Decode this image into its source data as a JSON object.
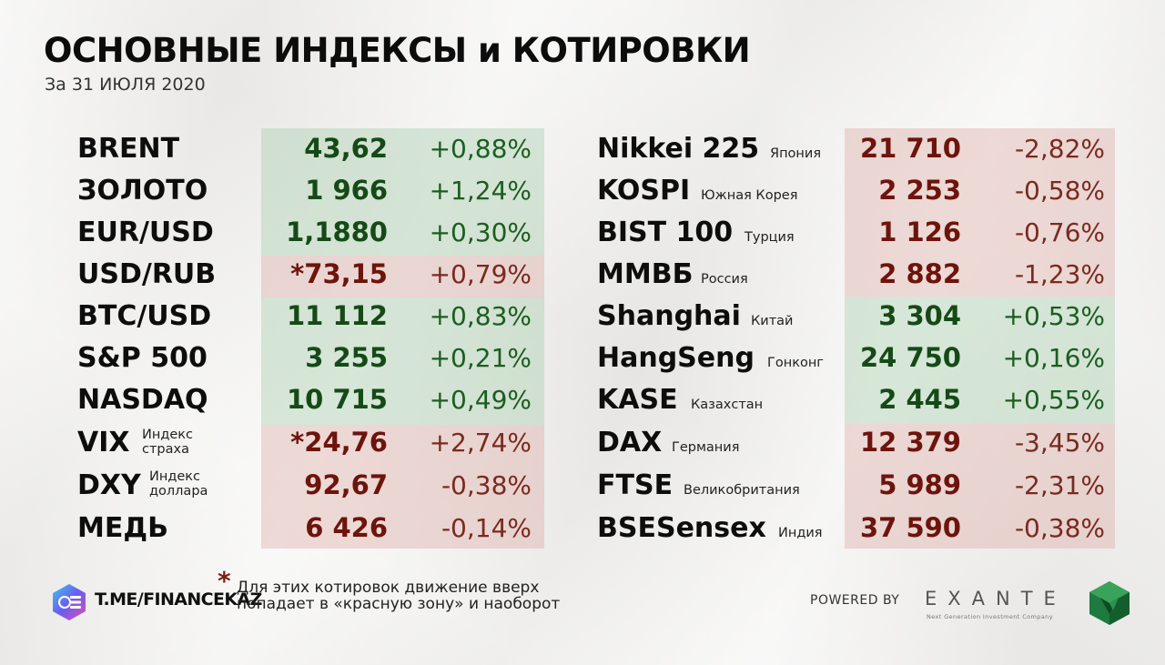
{
  "header": {
    "title": "ОСНОВНЫЕ ИНДЕКСЫ и КОТИРОВКИ",
    "subtitle": "За 31 ИЮЛЯ 2020"
  },
  "left": [
    {
      "name": "BRENT",
      "value": "43,62",
      "change": "+0,88%",
      "trend": "up"
    },
    {
      "name": "ЗОЛОТО",
      "value": "1 966",
      "change": "+1,24%",
      "trend": "up"
    },
    {
      "name": "EUR/USD",
      "value": "1,1880",
      "change": "+0,30%",
      "trend": "up"
    },
    {
      "name": "USD/RUB",
      "value": "*73,15",
      "change": "+0,79%",
      "trend": "down"
    },
    {
      "name": "BTC/USD",
      "value": "11 112",
      "change": "+0,83%",
      "trend": "up"
    },
    {
      "name": "S&P 500",
      "value": "3 255",
      "change": "+0,21%",
      "trend": "up"
    },
    {
      "name": "NASDAQ",
      "value": "10 715",
      "change": "+0,49%",
      "trend": "up"
    },
    {
      "name": "VIX",
      "note1": "Индекс",
      "note2": "страха",
      "value": "*24,76",
      "change": "+2,74%",
      "trend": "down"
    },
    {
      "name": "DXY",
      "note1": "Индекс",
      "note2": "доллара",
      "value": "92,67",
      "change": "-0,38%",
      "trend": "down"
    },
    {
      "name": "МЕДЬ",
      "value": "6 426",
      "change": "-0,14%",
      "trend": "down"
    }
  ],
  "right": [
    {
      "name": "Nikkei 225",
      "country": "Япония",
      "value": "21 710",
      "change": "-2,82%",
      "trend": "down"
    },
    {
      "name": "KOSPI",
      "country": "Южная Корея",
      "value": "2 253",
      "change": "-0,58%",
      "trend": "down"
    },
    {
      "name": "BIST 100",
      "country": "Турция",
      "value": "1 126",
      "change": "-0,76%",
      "trend": "down"
    },
    {
      "name": "ММВБ",
      "country": "Россия",
      "value": "2 882",
      "change": "-1,23%",
      "trend": "down"
    },
    {
      "name": "Shanghai",
      "country": "Китай",
      "value": "3 304",
      "change": "+0,53%",
      "trend": "up"
    },
    {
      "name": "HangSeng",
      "country": "Гонконг",
      "value": "24 750",
      "change": "+0,16%",
      "trend": "up"
    },
    {
      "name": "KASE",
      "country": "Казахстан",
      "value": "2 445",
      "change": "+0,55%",
      "trend": "up"
    },
    {
      "name": "DAX",
      "country": "Германия",
      "value": "12 379",
      "change": "-3,45%",
      "trend": "down"
    },
    {
      "name": "FTSE",
      "country": "Великобритания",
      "value": "5 989",
      "change": "-2,31%",
      "trend": "down"
    },
    {
      "name": "BSESensex",
      "country": "Индия",
      "value": "37 590",
      "change": "-0,38%",
      "trend": "down"
    }
  ],
  "footer": {
    "channel": "T.ME/FINANCEKAZ",
    "asterisk": "*",
    "footnote": "Для этих котировок движение вверх попадает в «красную зону» и наоборот",
    "powered_by": "POWERED BY",
    "brand": "EXANTE",
    "brand_tagline": "Next Generation Investment Company"
  },
  "colors": {
    "positive_band": "#acd0b2",
    "negative_band": "#deb2aa",
    "positive_text": "#1b5e20",
    "negative_text": "#6d140c"
  }
}
